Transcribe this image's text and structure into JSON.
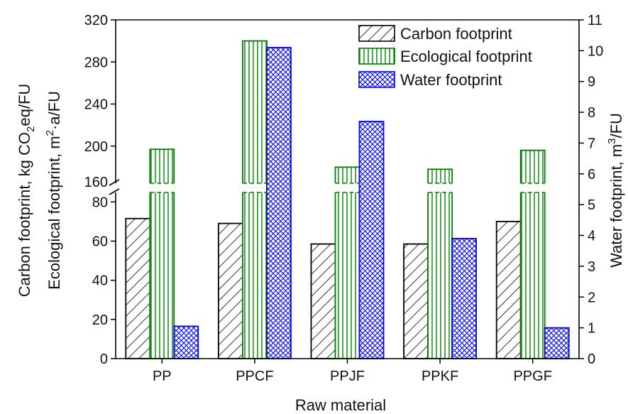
{
  "chart_data": {
    "type": "bar",
    "xlabel": "Raw material",
    "categories": [
      "PP",
      "PPCF",
      "PPJF",
      "PPKF",
      "PPGF"
    ],
    "series": [
      {
        "name": "Carbon footprint",
        "axis": "left",
        "values": [
          71.5,
          69,
          58.5,
          58.5,
          70
        ],
        "color": "#000000",
        "pattern": "diagonal-hatch"
      },
      {
        "name": "Ecological footprint",
        "axis": "left",
        "values": [
          197,
          300,
          180,
          178,
          196
        ],
        "color": "#008000",
        "pattern": "vertical-lines"
      },
      {
        "name": "Water footprint",
        "axis": "right",
        "values": [
          1.05,
          10.1,
          7.7,
          3.9,
          1.0
        ],
        "color": "#0000ff",
        "pattern": "crosshatch"
      }
    ],
    "left_axis": {
      "label_line1": "Carbon footprint, kg CO",
      "label_line1_sub": "2",
      "label_line1_end": "eq/FU",
      "label_line2": "Ecological footprint, m",
      "label_line2_sup": "2",
      "label_line2_end": "·a/FU",
      "lower_range": [
        0,
        87
      ],
      "upper_range": [
        160,
        320
      ],
      "lower_ticks": [
        "0",
        "20",
        "40",
        "60",
        "80"
      ],
      "upper_ticks": [
        "160",
        "200",
        "240",
        "280",
        "320"
      ],
      "break": "160"
    },
    "right_axis": {
      "label": "Water footprint, m",
      "label_sup": "3",
      "label_end": "/FU",
      "range": [
        0,
        11
      ],
      "ticks": [
        "0",
        "1",
        "2",
        "3",
        "4",
        "5",
        "6",
        "7",
        "8",
        "9",
        "10",
        "11"
      ]
    },
    "legend_position": "top-right",
    "grid": false
  }
}
